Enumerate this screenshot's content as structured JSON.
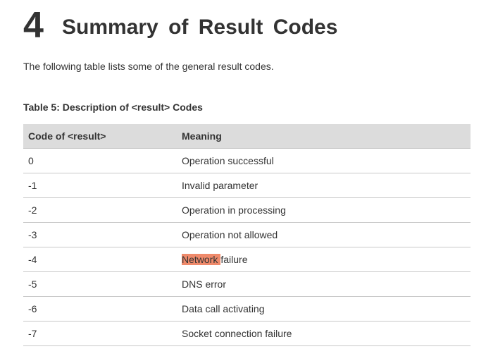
{
  "heading": {
    "number": "4",
    "title": "Summary of Result Codes"
  },
  "intro": "The following table lists some of the general result codes.",
  "table": {
    "caption": "Table 5: Description of <result> Codes",
    "header": [
      "Code of <result>",
      "Meaning"
    ],
    "rows": [
      [
        "0",
        "Operation successful"
      ],
      [
        "-1",
        "Invalid parameter"
      ],
      [
        "-2",
        "Operation in processing"
      ],
      [
        "-3",
        "Operation not allowed"
      ],
      [
        "-4",
        {
          "highlighted": "Network",
          "text": "failure"
        }
      ],
      [
        "-5",
        "DNS error"
      ],
      [
        "-6",
        "Data call activating"
      ],
      [
        "-7",
        "Socket connection failure"
      ]
    ]
  }
}
